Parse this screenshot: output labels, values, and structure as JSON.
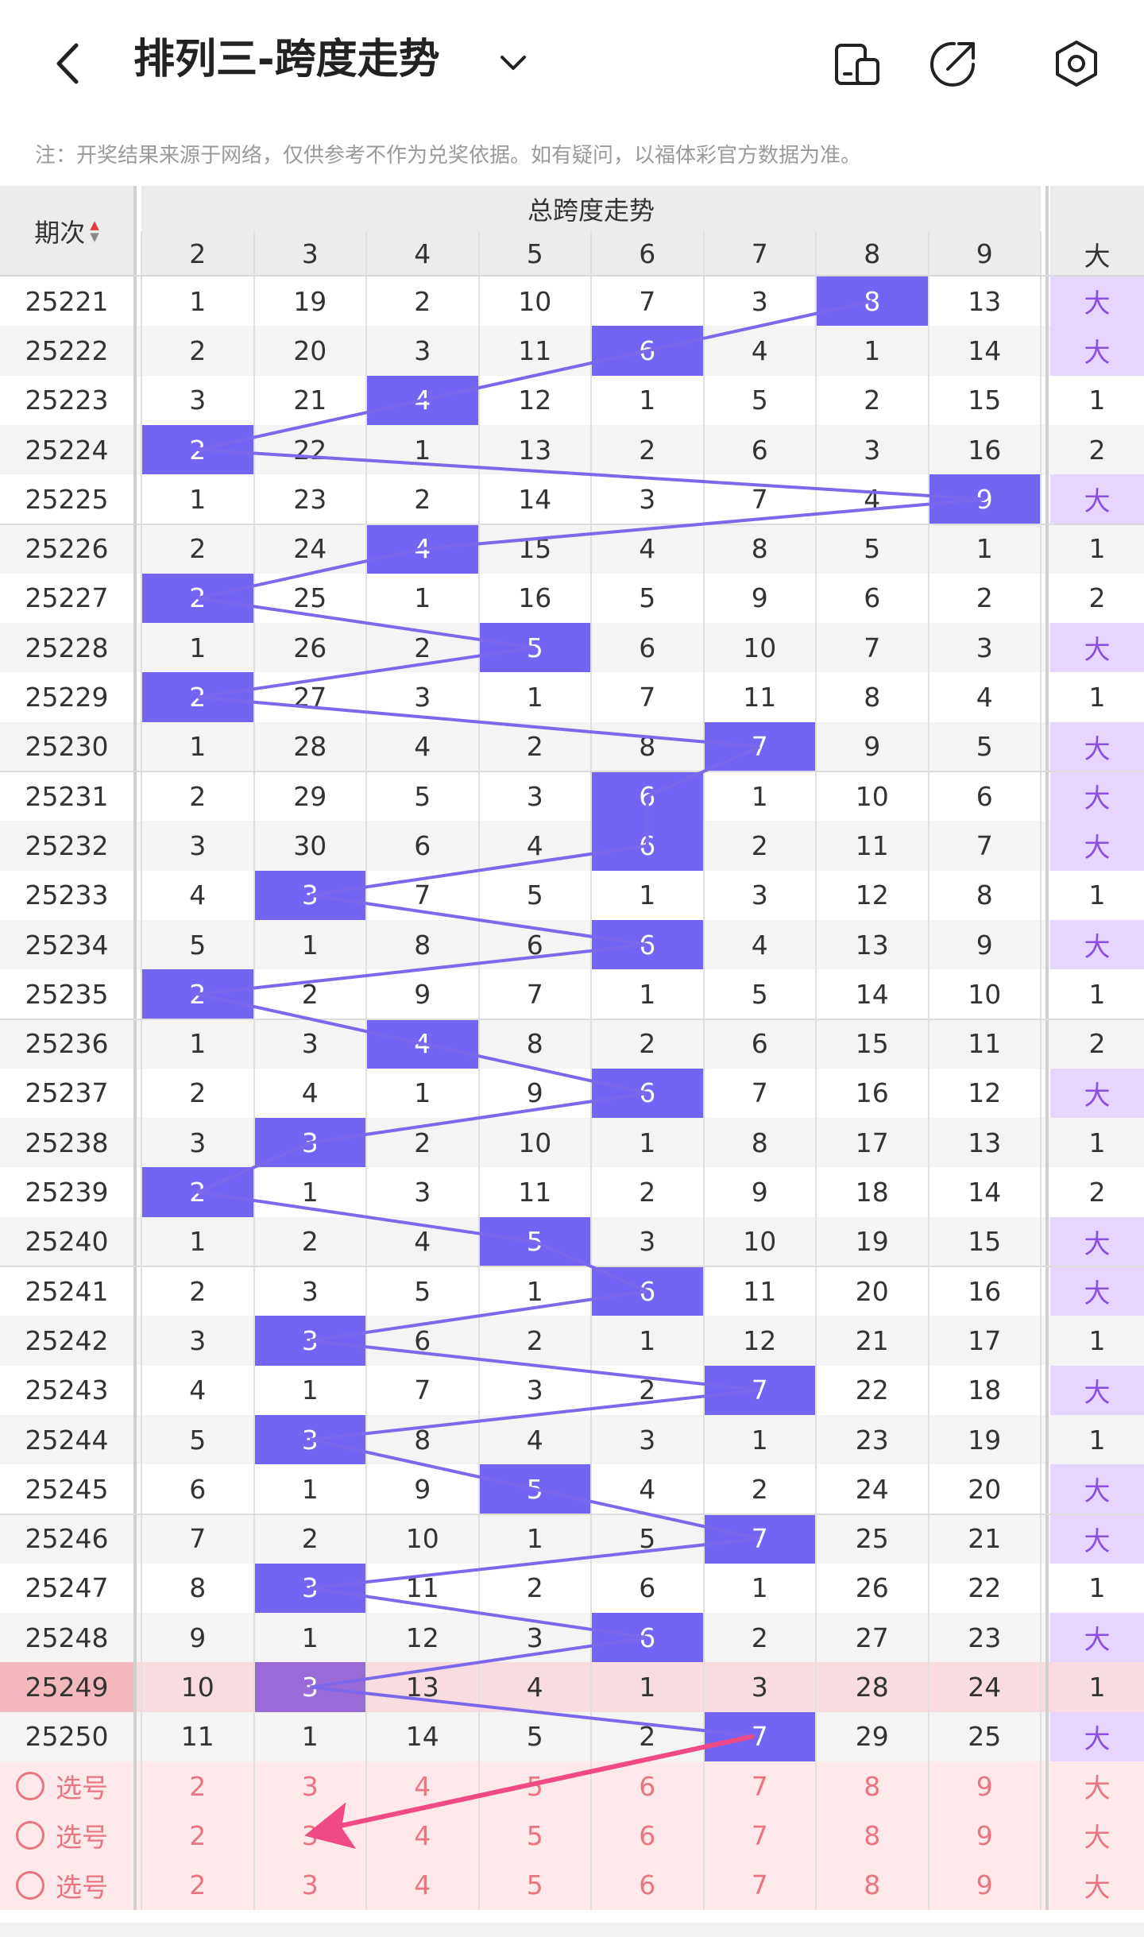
{
  "app": {
    "title": "排列三-跨度走势",
    "icons": [
      "back-arrow-icon",
      "chevron-down-icon",
      "device-icon",
      "share-icon",
      "settings-icon"
    ]
  },
  "notice": "注：开奖结果来源于网络，仅供参考不作为兑奖依据。如有疑问，以福体彩官方数据为准。",
  "table": {
    "issue_header": "期次",
    "group_header": "总跨度走势",
    "columns": [
      "2",
      "3",
      "4",
      "5",
      "6",
      "7",
      "8",
      "9"
    ],
    "extra_header": "大",
    "colors": {
      "hit": "#7464f4",
      "hit_highlight": "#9a6ad6",
      "big_bg": "#e6d6ff",
      "big_text": "#8b4fe0",
      "row_alt": "#f4f4f4",
      "highlight_row": "#f8dcdf",
      "select_bg": "#fde9e9",
      "select_text": "#e8757f",
      "line": "#7c68ea",
      "arrow": "#ef4a86"
    },
    "rows": [
      {
        "issue": "25221",
        "values": [
          "1",
          "19",
          "2",
          "10",
          "7",
          "3",
          "8",
          "13"
        ],
        "hit": 6,
        "extra": "大"
      },
      {
        "issue": "25222",
        "values": [
          "2",
          "20",
          "3",
          "11",
          "6",
          "4",
          "1",
          "14"
        ],
        "hit": 4,
        "extra": "大"
      },
      {
        "issue": "25223",
        "values": [
          "3",
          "21",
          "4",
          "12",
          "1",
          "5",
          "2",
          "15"
        ],
        "hit": 2,
        "extra": "1"
      },
      {
        "issue": "25224",
        "values": [
          "2",
          "22",
          "1",
          "13",
          "2",
          "6",
          "3",
          "16"
        ],
        "hit": 0,
        "extra": "2"
      },
      {
        "issue": "25225",
        "values": [
          "1",
          "23",
          "2",
          "14",
          "3",
          "7",
          "4",
          "9"
        ],
        "hit": 7,
        "extra": "大"
      },
      {
        "issue": "25226",
        "values": [
          "2",
          "24",
          "4",
          "15",
          "4",
          "8",
          "5",
          "1"
        ],
        "hit": 2,
        "extra": "1"
      },
      {
        "issue": "25227",
        "values": [
          "2",
          "25",
          "1",
          "16",
          "5",
          "9",
          "6",
          "2"
        ],
        "hit": 0,
        "extra": "2"
      },
      {
        "issue": "25228",
        "values": [
          "1",
          "26",
          "2",
          "5",
          "6",
          "10",
          "7",
          "3"
        ],
        "hit": 3,
        "extra": "大"
      },
      {
        "issue": "25229",
        "values": [
          "2",
          "27",
          "3",
          "1",
          "7",
          "11",
          "8",
          "4"
        ],
        "hit": 0,
        "extra": "1"
      },
      {
        "issue": "25230",
        "values": [
          "1",
          "28",
          "4",
          "2",
          "8",
          "7",
          "9",
          "5"
        ],
        "hit": 5,
        "extra": "大"
      },
      {
        "issue": "25231",
        "values": [
          "2",
          "29",
          "5",
          "3",
          "6",
          "1",
          "10",
          "6"
        ],
        "hit": 4,
        "extra": "大"
      },
      {
        "issue": "25232",
        "values": [
          "3",
          "30",
          "6",
          "4",
          "6",
          "2",
          "11",
          "7"
        ],
        "hit": 4,
        "extra": "大"
      },
      {
        "issue": "25233",
        "values": [
          "4",
          "3",
          "7",
          "5",
          "1",
          "3",
          "12",
          "8"
        ],
        "hit": 1,
        "extra": "1"
      },
      {
        "issue": "25234",
        "values": [
          "5",
          "1",
          "8",
          "6",
          "6",
          "4",
          "13",
          "9"
        ],
        "hit": 4,
        "extra": "大"
      },
      {
        "issue": "25235",
        "values": [
          "2",
          "2",
          "9",
          "7",
          "1",
          "5",
          "14",
          "10"
        ],
        "hit": 0,
        "extra": "1"
      },
      {
        "issue": "25236",
        "values": [
          "1",
          "3",
          "4",
          "8",
          "2",
          "6",
          "15",
          "11"
        ],
        "hit": 2,
        "extra": "2"
      },
      {
        "issue": "25237",
        "values": [
          "2",
          "4",
          "1",
          "9",
          "6",
          "7",
          "16",
          "12"
        ],
        "hit": 4,
        "extra": "大"
      },
      {
        "issue": "25238",
        "values": [
          "3",
          "3",
          "2",
          "10",
          "1",
          "8",
          "17",
          "13"
        ],
        "hit": 1,
        "extra": "1"
      },
      {
        "issue": "25239",
        "values": [
          "2",
          "1",
          "3",
          "11",
          "2",
          "9",
          "18",
          "14"
        ],
        "hit": 0,
        "extra": "2"
      },
      {
        "issue": "25240",
        "values": [
          "1",
          "2",
          "4",
          "5",
          "3",
          "10",
          "19",
          "15"
        ],
        "hit": 3,
        "extra": "大"
      },
      {
        "issue": "25241",
        "values": [
          "2",
          "3",
          "5",
          "1",
          "6",
          "11",
          "20",
          "16"
        ],
        "hit": 4,
        "extra": "大"
      },
      {
        "issue": "25242",
        "values": [
          "3",
          "3",
          "6",
          "2",
          "1",
          "12",
          "21",
          "17"
        ],
        "hit": 1,
        "extra": "1"
      },
      {
        "issue": "25243",
        "values": [
          "4",
          "1",
          "7",
          "3",
          "2",
          "7",
          "22",
          "18"
        ],
        "hit": 5,
        "extra": "大"
      },
      {
        "issue": "25244",
        "values": [
          "5",
          "3",
          "8",
          "4",
          "3",
          "1",
          "23",
          "19"
        ],
        "hit": 1,
        "extra": "1"
      },
      {
        "issue": "25245",
        "values": [
          "6",
          "1",
          "9",
          "5",
          "4",
          "2",
          "24",
          "20"
        ],
        "hit": 3,
        "extra": "大"
      },
      {
        "issue": "25246",
        "values": [
          "7",
          "2",
          "10",
          "1",
          "5",
          "7",
          "25",
          "21"
        ],
        "hit": 5,
        "extra": "大"
      },
      {
        "issue": "25247",
        "values": [
          "8",
          "3",
          "11",
          "2",
          "6",
          "1",
          "26",
          "22"
        ],
        "hit": 1,
        "extra": "1"
      },
      {
        "issue": "25248",
        "values": [
          "9",
          "1",
          "12",
          "3",
          "6",
          "2",
          "27",
          "23"
        ],
        "hit": 4,
        "extra": "大"
      },
      {
        "issue": "25249",
        "values": [
          "10",
          "3",
          "13",
          "4",
          "1",
          "3",
          "28",
          "24"
        ],
        "hit": 1,
        "extra": "1",
        "highlight": true
      },
      {
        "issue": "25250",
        "values": [
          "11",
          "1",
          "14",
          "5",
          "2",
          "7",
          "29",
          "25"
        ],
        "hit": 5,
        "extra": "大"
      }
    ],
    "select_rows": [
      {
        "label": "选号",
        "values": [
          "2",
          "3",
          "4",
          "5",
          "6",
          "7",
          "8",
          "9"
        ],
        "extra": "大"
      },
      {
        "label": "选号",
        "values": [
          "2",
          "3",
          "4",
          "5",
          "6",
          "7",
          "8",
          "9"
        ],
        "extra": "大"
      },
      {
        "label": "选号",
        "values": [
          "2",
          "3",
          "4",
          "5",
          "6",
          "7",
          "8",
          "9"
        ],
        "extra": "大"
      }
    ]
  }
}
